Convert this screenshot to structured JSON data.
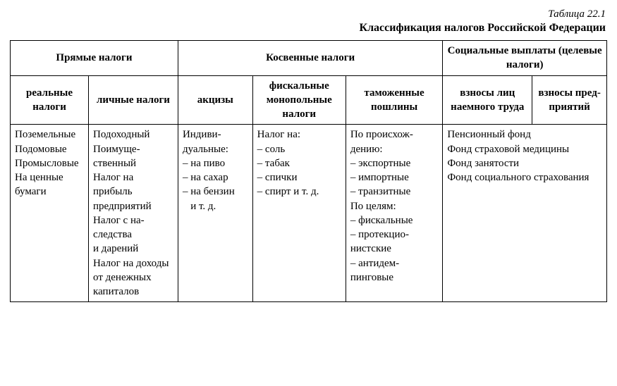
{
  "caption": "Таблица 22.1",
  "title": "Классификация налогов Российской Федерации",
  "headers": {
    "group1": "Прямые налоги",
    "group2": "Косвенные налоги",
    "group3": "Социальные выплаты (целевые налоги)",
    "col1": "реальные налоги",
    "col2": "личные налоги",
    "col3": "акцизы",
    "col4": "фискальные монополь­ные налоги",
    "col5": "таможенные пошлины",
    "col6": "взносы лиц наемного труда",
    "col7": "взносы пред­приятий"
  },
  "cells": {
    "c1": "Поземель­ные<br>Подомовые<br>Промысло­вые<br>На ценные бумаги",
    "c2": "Подоходный<br>Поимуще­ственный<br>Налог на прибыль предприятий<br>Налог с на­следства и дарений<br>Налог на доходы от денежных капиталов",
    "c3": "Индиви­дуальные:<br>– на пиво<br>– на сахар<br>– на бен­зин<br>   и т. д.",
    "c4": "Налог на:<br>– соль<br>– табак<br>– спички<br>– спирт и т. д.",
    "c5": "По происхож­дению:<br>– экспортные<br>– импортные<br>– транзитные<br>По целям:<br>– фискальные<br>– протекцио­нистские<br>– антидем­пинговые",
    "c67": "Пенсионный фонд<br>Фонд страховой медицины<br>Фонд занятости<br>Фонд социального страхования"
  }
}
